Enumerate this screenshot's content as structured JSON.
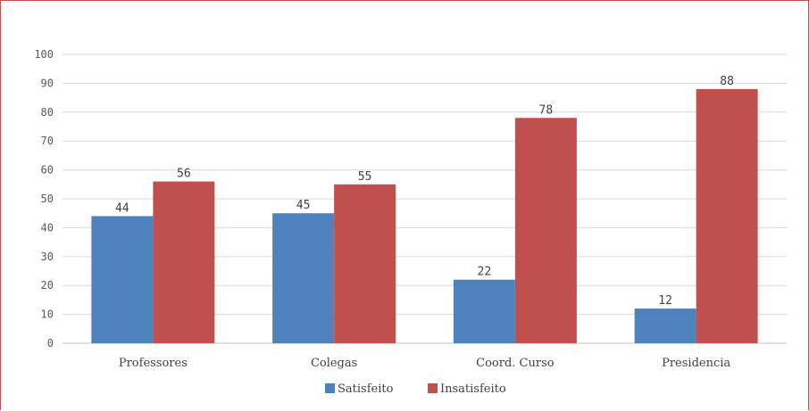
{
  "chart_data": {
    "type": "bar",
    "categories": [
      "Professores",
      "Colegas",
      "Coord. Curso",
      "Presidencia"
    ],
    "series": [
      {
        "name": "Satisfeito",
        "values": [
          44,
          45,
          22,
          12
        ],
        "color": "#4f81bd"
      },
      {
        "name": "Insatisfeito",
        "values": [
          56,
          55,
          78,
          88
        ],
        "color": "#c0504d"
      }
    ],
    "title": "",
    "xlabel": "",
    "ylabel": "",
    "ylim": [
      0,
      100
    ],
    "yticks": [
      0,
      10,
      20,
      30,
      40,
      50,
      60,
      70,
      80,
      90,
      100
    ],
    "grid": true,
    "legend_position": "bottom",
    "frame_color": "#c0504d",
    "gridline_color": "#d9d9d9"
  }
}
